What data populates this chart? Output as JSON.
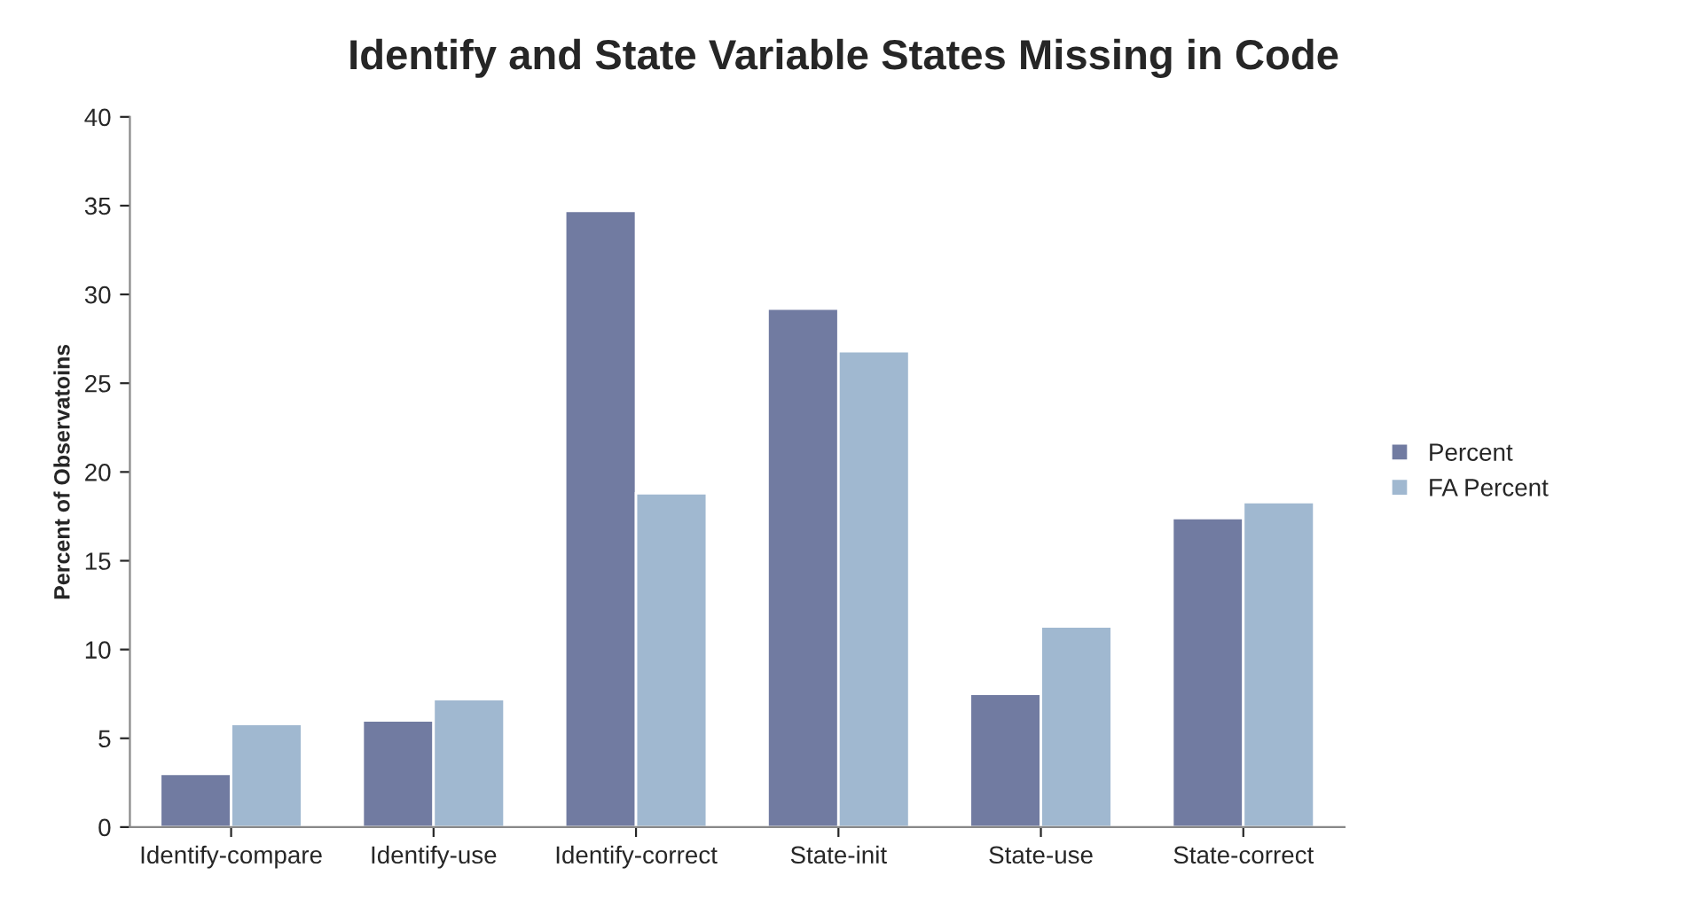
{
  "chart_data": {
    "type": "bar",
    "title": "Identify and State Variable States Missing in Code",
    "ylabel": "Percent of Observatoins",
    "categories": [
      "Identify-compare",
      "Identify-use",
      "Identify-correct",
      "State-init",
      "State-use",
      "State-correct"
    ],
    "series": [
      {
        "name": "Percent",
        "color": "#717ba1",
        "values": [
          3.0,
          6.0,
          34.7,
          29.2,
          7.5,
          17.4
        ]
      },
      {
        "name": "FA Percent",
        "color": "#a0b8d0",
        "values": [
          5.8,
          7.2,
          18.8,
          26.8,
          11.3,
          18.3
        ]
      }
    ],
    "ylim": [
      0,
      40
    ],
    "yticks": [
      0,
      5,
      10,
      15,
      20,
      25,
      30,
      35,
      40
    ],
    "grid": false,
    "legend": "right"
  }
}
